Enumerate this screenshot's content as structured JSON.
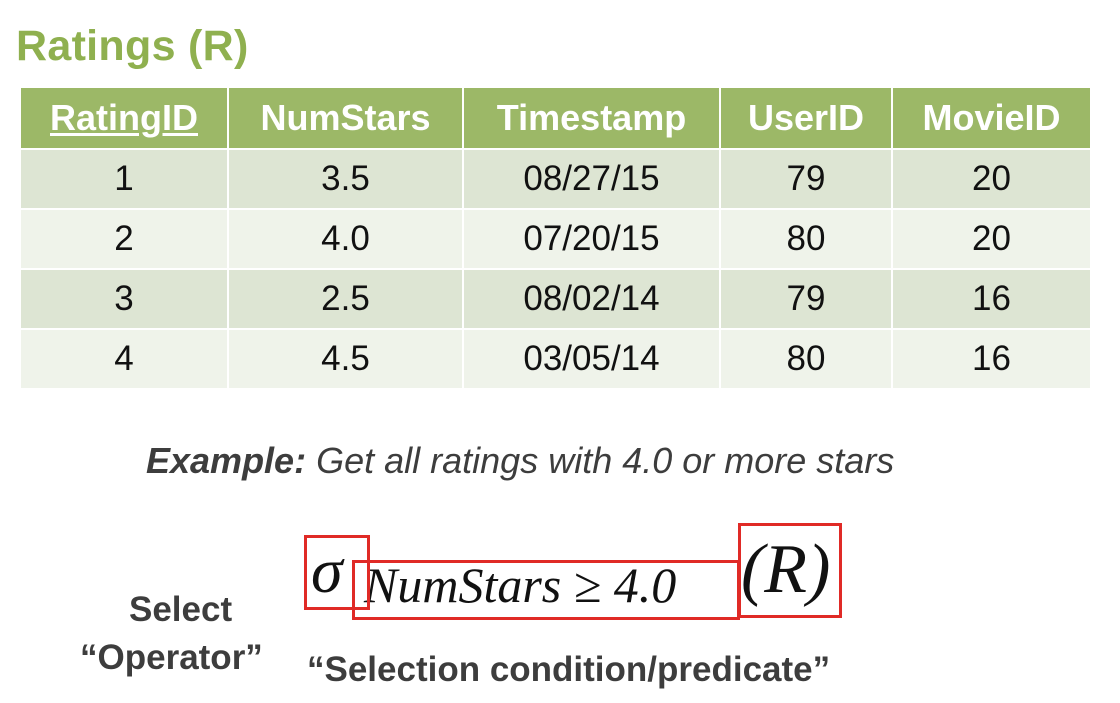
{
  "title": "Ratings (R)",
  "table": {
    "headers": [
      "RatingID",
      "NumStars",
      "Timestamp",
      "UserID",
      "MovieID"
    ],
    "rows": [
      [
        "1",
        "3.5",
        "08/27/15",
        "79",
        "20"
      ],
      [
        "2",
        "4.0",
        "07/20/15",
        "80",
        "20"
      ],
      [
        "3",
        "2.5",
        "08/02/14",
        "79",
        "16"
      ],
      [
        "4",
        "4.5",
        "03/05/14",
        "80",
        "16"
      ]
    ]
  },
  "example": {
    "lead": "Example:",
    "text": "Get all ratings with 4.0 or more stars"
  },
  "formula": {
    "operator": "σ",
    "condition": "NumStars ≥ 4.0",
    "relation": "(R)"
  },
  "labels": {
    "select_line1": "Select",
    "select_line2": "“Operator”",
    "condition": "“Selection condition/predicate”"
  },
  "colors": {
    "title": "#8fb04f",
    "header_bg": "#9cb867",
    "row_dark": "#dde5d3",
    "row_light": "#eff3ea",
    "highlight_box": "#e02a26"
  }
}
